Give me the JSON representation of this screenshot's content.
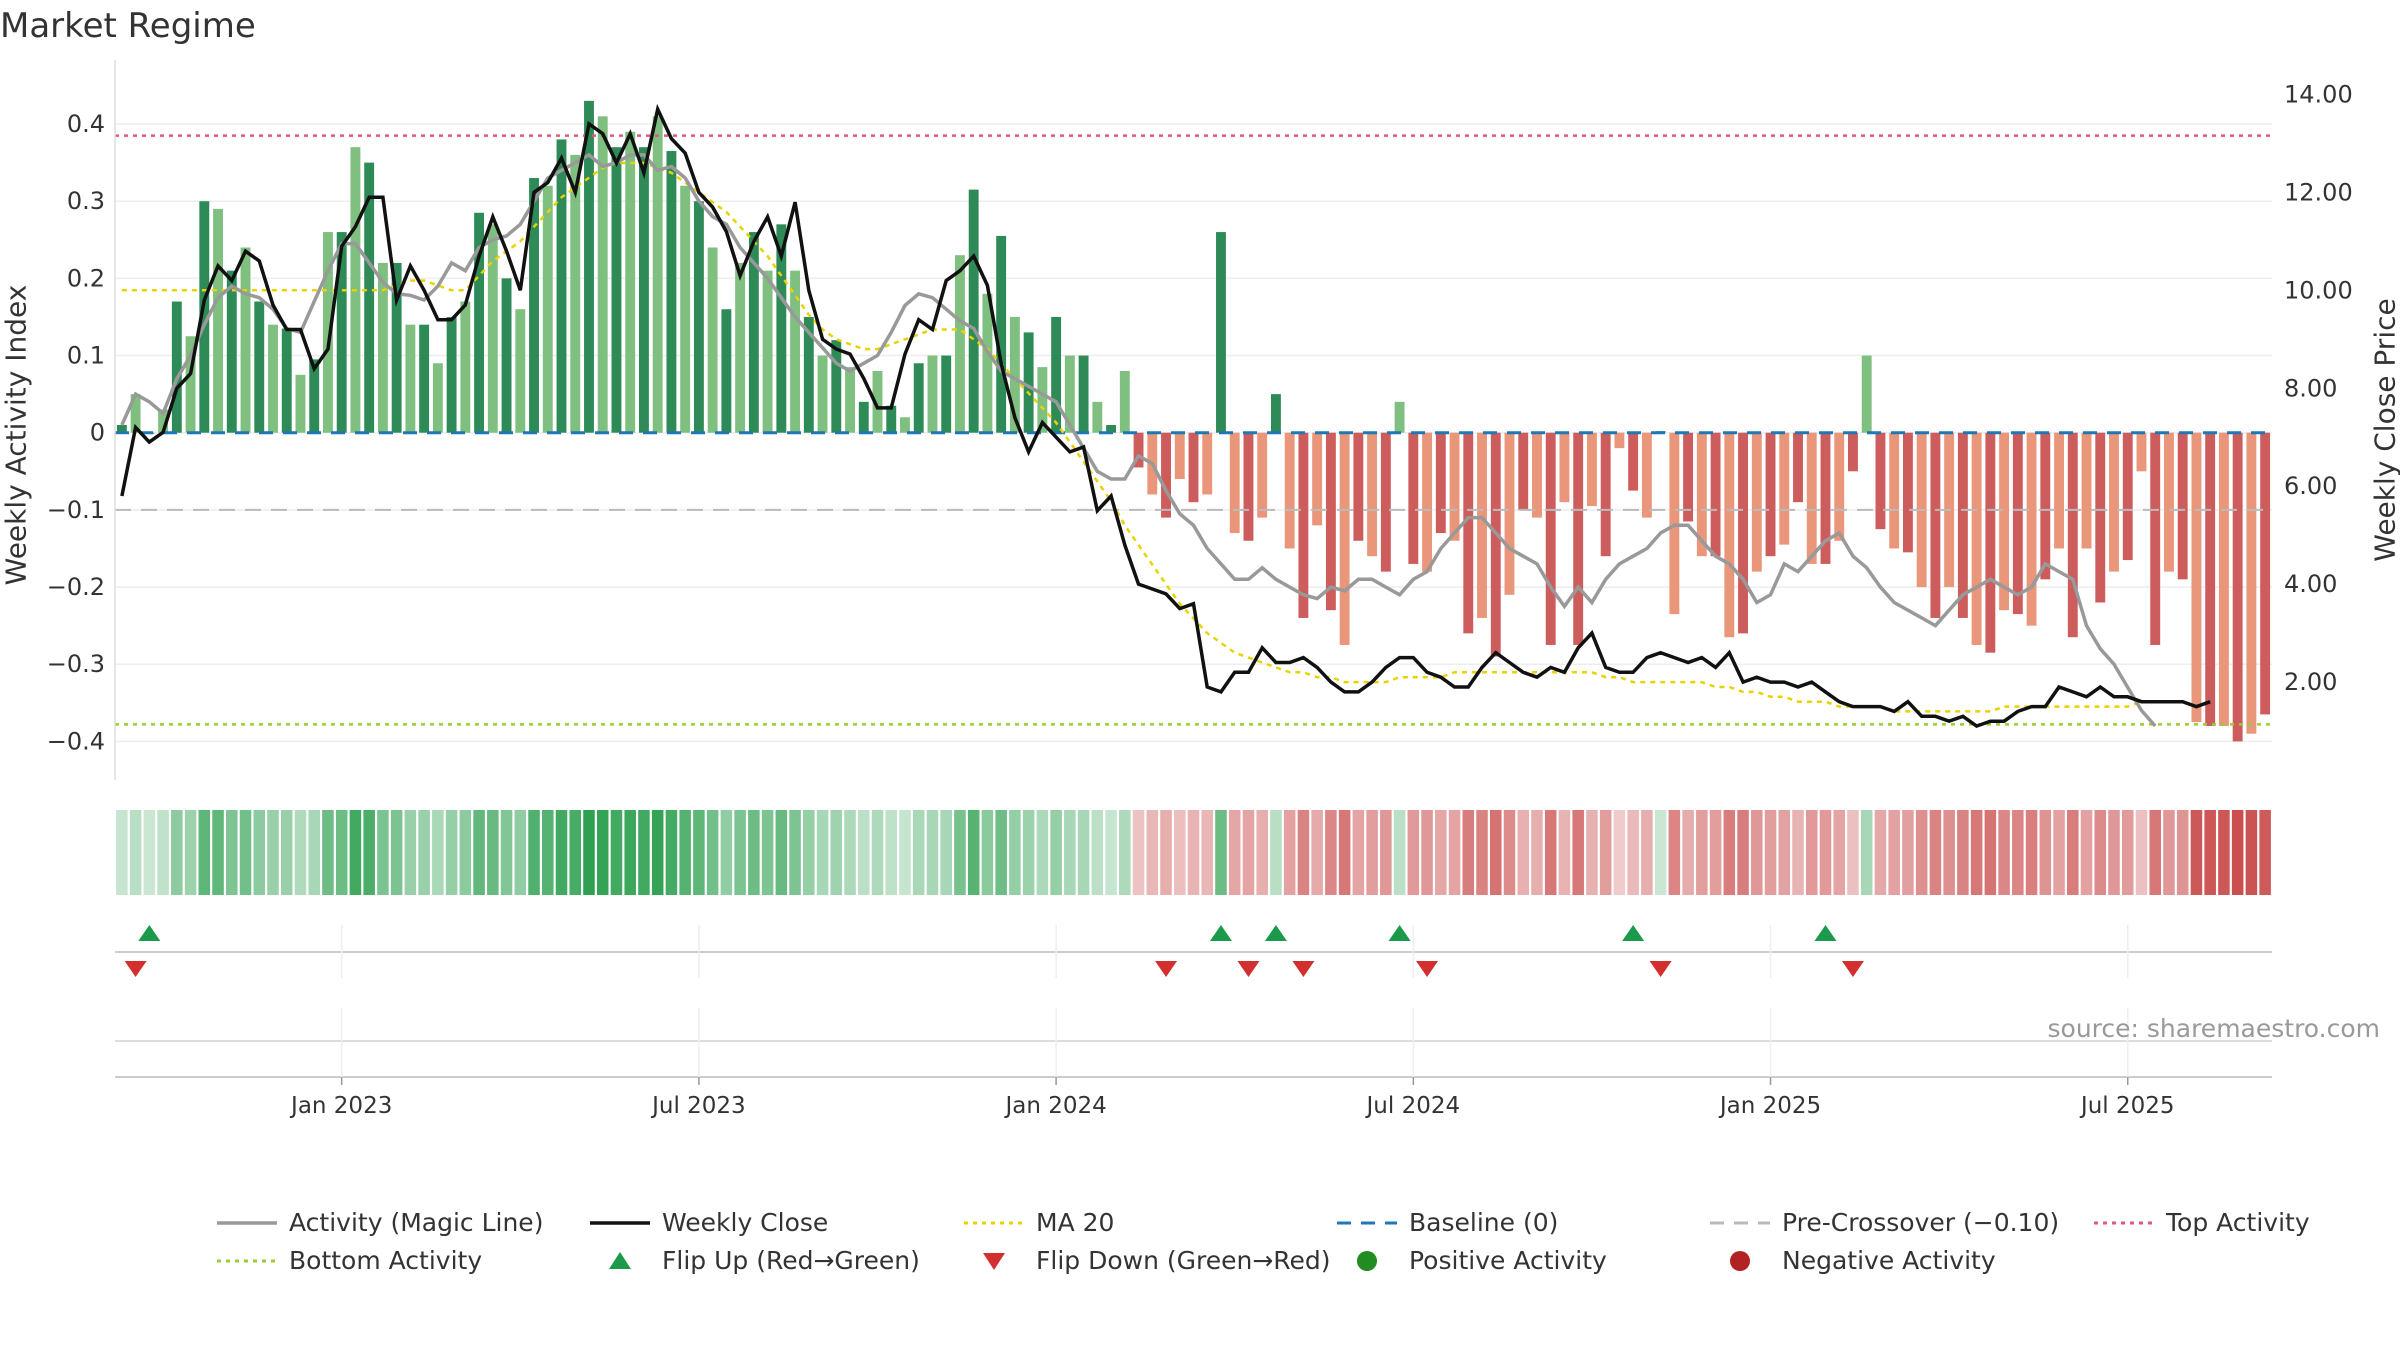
{
  "title": "Market Regime",
  "source": "source: sharemaestro.com",
  "colors": {
    "green_dark": "#2e8b57",
    "green_light": "#7fbf7f",
    "red_dark": "#cd5c5c",
    "red_light": "#e9967a",
    "magic_line": "#999999",
    "close": "#111111",
    "ma": "#e8d200",
    "baseline": "#1f77b4",
    "pre_crossover": "#bbbbbb",
    "top_activity": "#e05a7a",
    "bottom_activity": "#9acd32",
    "flip_up": "#1a9a4a",
    "flip_down": "#d32f2f",
    "positive": "#228b22",
    "negative": "#b22222"
  },
  "chart_data": {
    "type": "bar",
    "title": "Market Regime",
    "ylabel": "Weekly Activity Index",
    "ylabel_right": "Weekly Close Price",
    "ylim": [
      -0.45,
      0.47
    ],
    "ylim_right": [
      0,
      14.5
    ],
    "yticks": [
      {
        "value": 0.4,
        "label": "0.4"
      },
      {
        "value": 0.3,
        "label": "0.3"
      },
      {
        "value": 0.2,
        "label": "0.2"
      },
      {
        "value": 0.1,
        "label": "0.1"
      },
      {
        "value": 0.0,
        "label": "0"
      },
      {
        "value": -0.1,
        "label": "−0.1"
      },
      {
        "value": -0.2,
        "label": "−0.2"
      },
      {
        "value": -0.3,
        "label": "−0.3"
      },
      {
        "value": -0.4,
        "label": "−0.4"
      }
    ],
    "yticks_right": [
      {
        "value": 14,
        "label": "14.00"
      },
      {
        "value": 12,
        "label": "12.00"
      },
      {
        "value": 10,
        "label": "10.00"
      },
      {
        "value": 8,
        "label": "8.00"
      },
      {
        "value": 6,
        "label": "6.00"
      },
      {
        "value": 4,
        "label": "4.00"
      },
      {
        "value": 2,
        "label": "2.00"
      }
    ],
    "xticks": [
      {
        "week": 16,
        "label": "Jan 2023"
      },
      {
        "week": 42,
        "label": "Jul 2023"
      },
      {
        "week": 68,
        "label": "Jan 2024"
      },
      {
        "week": 94,
        "label": "Jul 2024"
      },
      {
        "week": 120,
        "label": "Jan 2025"
      },
      {
        "week": 146,
        "label": "Jul 2025"
      }
    ],
    "reference_lines": {
      "baseline": 0,
      "pre_crossover": -0.1,
      "top_activity": 0.385,
      "bottom_activity": -0.378
    },
    "activity": [
      0.01,
      0.05,
      0,
      0.03,
      0.17,
      0.125,
      0.3,
      0.29,
      0.21,
      0.24,
      0.17,
      0.14,
      0.135,
      0.075,
      0.095,
      0.26,
      0.26,
      0.37,
      0.35,
      0.22,
      0.22,
      0.14,
      0.14,
      0.09,
      0.15,
      0.17,
      0.285,
      0.27,
      0.2,
      0.16,
      0.33,
      0.32,
      0.38,
      0.36,
      0.43,
      0.41,
      0.37,
      0.39,
      0.37,
      0.41,
      0.365,
      0.32,
      0.3,
      0.24,
      0.16,
      0.22,
      0.26,
      0.21,
      0.27,
      0.21,
      0.15,
      0.1,
      0.12,
      0.085,
      0.04,
      0.08,
      0.035,
      0.02,
      0.09,
      0.1,
      0.1,
      0.23,
      0.315,
      0.18,
      0.255,
      0.15,
      0.13,
      0.085,
      0.15,
      0.1,
      0.1,
      0.04,
      0.01,
      0.08,
      -0.045,
      -0.08,
      -0.11,
      -0.06,
      -0.09,
      -0.08,
      0.26,
      -0.13,
      -0.14,
      -0.11,
      0.05,
      -0.15,
      -0.24,
      -0.12,
      -0.23,
      -0.275,
      -0.14,
      -0.16,
      -0.18,
      0.04,
      -0.17,
      -0.18,
      -0.13,
      -0.14,
      -0.26,
      -0.24,
      -0.29,
      -0.21,
      -0.1,
      -0.11,
      -0.275,
      -0.09,
      -0.275,
      -0.095,
      -0.16,
      -0.02,
      -0.075,
      -0.11,
      0.002,
      -0.235,
      -0.115,
      -0.16,
      -0.16,
      -0.265,
      -0.26,
      -0.18,
      -0.16,
      -0.145,
      -0.09,
      -0.17,
      -0.17,
      -0.14,
      -0.05,
      0.1,
      -0.125,
      -0.15,
      -0.155,
      -0.2,
      -0.24,
      -0.2,
      -0.24,
      -0.275,
      -0.285,
      -0.23,
      -0.235,
      -0.25,
      -0.19,
      -0.15,
      -0.265,
      -0.15,
      -0.22,
      -0.18,
      -0.165,
      -0.05,
      -0.275,
      -0.18,
      -0.19,
      -0.375,
      -0.38,
      -0.38,
      -0.4,
      -0.39,
      -0.365
    ],
    "magic_line": [
      0.01,
      0.05,
      0.04,
      0.025,
      0.07,
      0.1,
      0.14,
      0.175,
      0.19,
      0.18,
      0.175,
      0.16,
      0.135,
      0.13,
      0.17,
      0.21,
      0.245,
      0.245,
      0.22,
      0.195,
      0.18,
      0.178,
      0.172,
      0.19,
      0.22,
      0.21,
      0.24,
      0.25,
      0.255,
      0.27,
      0.3,
      0.33,
      0.34,
      0.35,
      0.36,
      0.345,
      0.35,
      0.36,
      0.36,
      0.34,
      0.345,
      0.33,
      0.3,
      0.28,
      0.27,
      0.24,
      0.22,
      0.2,
      0.175,
      0.15,
      0.13,
      0.11,
      0.09,
      0.08,
      0.09,
      0.1,
      0.13,
      0.165,
      0.18,
      0.175,
      0.16,
      0.145,
      0.135,
      0.105,
      0.08,
      0.07,
      0.06,
      0.05,
      0.04,
      0.01,
      -0.02,
      -0.05,
      -0.06,
      -0.06,
      -0.03,
      -0.04,
      -0.075,
      -0.105,
      -0.12,
      -0.15,
      -0.17,
      -0.19,
      -0.19,
      -0.175,
      -0.19,
      -0.2,
      -0.21,
      -0.215,
      -0.2,
      -0.205,
      -0.19,
      -0.19,
      -0.2,
      -0.21,
      -0.19,
      -0.18,
      -0.15,
      -0.13,
      -0.11,
      -0.11,
      -0.13,
      -0.15,
      -0.16,
      -0.17,
      -0.2,
      -0.225,
      -0.2,
      -0.22,
      -0.19,
      -0.17,
      -0.16,
      -0.15,
      -0.13,
      -0.12,
      -0.12,
      -0.14,
      -0.16,
      -0.17,
      -0.19,
      -0.22,
      -0.21,
      -0.17,
      -0.18,
      -0.16,
      -0.14,
      -0.13,
      -0.16,
      -0.175,
      -0.2,
      -0.22,
      -0.23,
      -0.24,
      -0.25,
      -0.23,
      -0.21,
      -0.2,
      -0.19,
      -0.2,
      -0.21,
      -0.2,
      -0.17,
      -0.18,
      -0.19,
      -0.25,
      -0.28,
      -0.3,
      -0.33,
      -0.36,
      -0.38
    ],
    "weekly_close": [
      5.8,
      7.2,
      6.9,
      7.1,
      8.0,
      8.3,
      9.8,
      10.5,
      10.2,
      10.8,
      10.6,
      9.7,
      9.2,
      9.2,
      8.4,
      8.8,
      10.9,
      11.3,
      11.9,
      11.9,
      9.8,
      10.5,
      10.0,
      9.4,
      9.4,
      9.7,
      10.7,
      11.5,
      10.8,
      10.0,
      12.0,
      12.2,
      12.7,
      12.0,
      13.4,
      13.2,
      12.6,
      13.2,
      12.4,
      13.7,
      13.1,
      12.8,
      12.0,
      11.7,
      11.2,
      10.3,
      11.0,
      11.5,
      10.7,
      11.8,
      10.0,
      9.0,
      8.8,
      8.7,
      8.2,
      7.6,
      7.6,
      8.7,
      9.4,
      9.2,
      10.2,
      10.4,
      10.7,
      10.1,
      8.5,
      7.4,
      6.7,
      7.3,
      7.0,
      6.7,
      6.8,
      5.5,
      5.8,
      4.8,
      4.0,
      3.9,
      3.8,
      3.5,
      3.6,
      1.9,
      1.8,
      2.2,
      2.2,
      2.7,
      2.4,
      2.4,
      2.5,
      2.3,
      2.0,
      1.8,
      1.8,
      2.0,
      2.3,
      2.5,
      2.5,
      2.2,
      2.1,
      1.9,
      1.9,
      2.3,
      2.6,
      2.4,
      2.2,
      2.1,
      2.3,
      2.2,
      2.7,
      3.0,
      2.3,
      2.2,
      2.2,
      2.5,
      2.6,
      2.5,
      2.4,
      2.5,
      2.3,
      2.6,
      2.0,
      2.1,
      2.0,
      2.0,
      1.9,
      2.0,
      1.8,
      1.6,
      1.5,
      1.5,
      1.5,
      1.4,
      1.6,
      1.3,
      1.3,
      1.2,
      1.3,
      1.1,
      1.2,
      1.2,
      1.4,
      1.5,
      1.5,
      1.9,
      1.8,
      1.7,
      1.9,
      1.7,
      1.7,
      1.6,
      1.6,
      1.6,
      1.6,
      1.5,
      1.6
    ],
    "ma20": [
      10.0,
      10.0,
      10.0,
      10.0,
      10.0,
      10.0,
      10.0,
      10.0,
      10.0,
      10.0,
      10.0,
      10.0,
      10.0,
      10.0,
      10.0,
      10.0,
      10.0,
      10.0,
      10.0,
      10.0,
      10.1,
      10.2,
      10.2,
      10.1,
      10.0,
      10.0,
      10.3,
      10.6,
      10.8,
      11.0,
      11.3,
      11.6,
      11.9,
      12.1,
      12.3,
      12.5,
      12.6,
      12.6,
      12.6,
      12.5,
      12.4,
      12.2,
      12.0,
      11.8,
      11.6,
      11.3,
      11.0,
      10.7,
      10.3,
      9.9,
      9.5,
      9.2,
      9.0,
      8.9,
      8.8,
      8.8,
      8.9,
      9.0,
      9.1,
      9.2,
      9.2,
      9.2,
      9.0,
      8.8,
      8.5,
      8.2,
      7.9,
      7.6,
      7.3,
      6.9,
      6.5,
      6.1,
      5.7,
      5.2,
      4.8,
      4.4,
      4.0,
      3.6,
      3.3,
      3.0,
      2.8,
      2.6,
      2.5,
      2.4,
      2.3,
      2.2,
      2.2,
      2.1,
      2.1,
      2.0,
      2.0,
      2.0,
      2.0,
      2.1,
      2.1,
      2.1,
      2.1,
      2.2,
      2.2,
      2.2,
      2.2,
      2.2,
      2.2,
      2.2,
      2.2,
      2.2,
      2.2,
      2.2,
      2.1,
      2.1,
      2.0,
      2.0,
      2.0,
      2.0,
      2.0,
      2.0,
      1.9,
      1.9,
      1.8,
      1.8,
      1.7,
      1.7,
      1.6,
      1.6,
      1.6,
      1.5,
      1.5,
      1.5,
      1.5,
      1.4,
      1.4,
      1.4,
      1.4,
      1.4,
      1.4,
      1.4,
      1.4,
      1.5,
      1.5,
      1.5,
      1.5,
      1.5,
      1.5,
      1.5,
      1.5,
      1.5,
      1.5,
      1.6,
      1.6
    ],
    "flip_up_weeks": [
      2,
      80,
      84,
      93,
      110,
      124
    ],
    "flip_down_weeks": [
      1,
      76,
      82,
      86,
      95,
      112,
      126
    ]
  },
  "legend": [
    {
      "label": "Activity (Magic Line)",
      "kind": "line-solid",
      "color": "#999999"
    },
    {
      "label": "Weekly Close",
      "kind": "line-solid",
      "color": "#111111"
    },
    {
      "label": "MA 20",
      "kind": "line-dotted",
      "color": "#e8d200"
    },
    {
      "label": "Baseline (0)",
      "kind": "line-dashed",
      "color": "#1f77b4"
    },
    {
      "label": "Pre-Crossover (−0.10)",
      "kind": "line-dashed",
      "color": "#bbbbbb"
    },
    {
      "label": "Top Activity",
      "kind": "line-dotted",
      "color": "#e05a7a"
    },
    {
      "label": "Bottom Activity",
      "kind": "line-dotted",
      "color": "#9acd32"
    },
    {
      "label": "Flip Up (Red→Green)",
      "kind": "triangle-up",
      "color": "#1a9a4a"
    },
    {
      "label": "Flip Down (Green→Red)",
      "kind": "triangle-down",
      "color": "#d32f2f"
    },
    {
      "label": "Positive Activity",
      "kind": "dot",
      "color": "#228b22"
    },
    {
      "label": "Negative Activity",
      "kind": "dot",
      "color": "#b22222"
    }
  ]
}
